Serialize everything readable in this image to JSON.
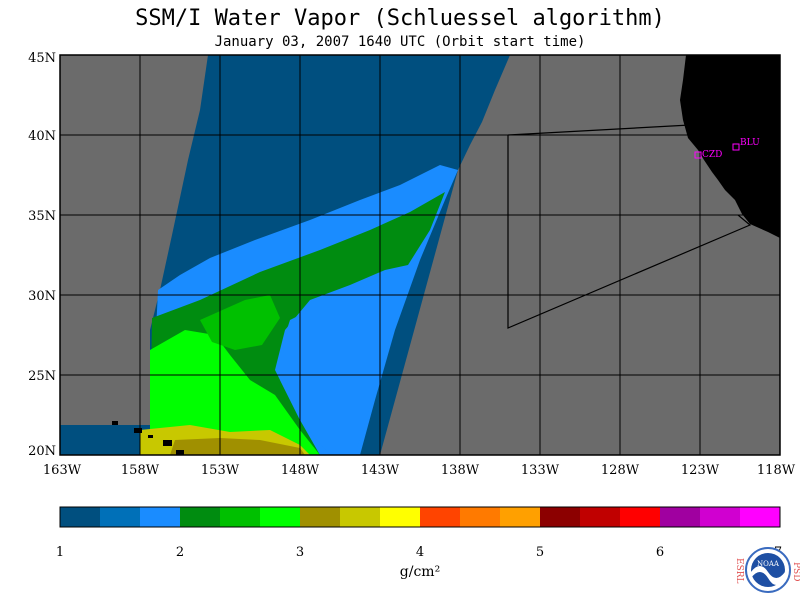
{
  "header": {
    "title": "SSM/I Water Vapor (Schluessel algorithm)",
    "subtitle": "January 03, 2007  1640 UTC  (Orbit start time)"
  },
  "map": {
    "lat_labels": [
      "45N",
      "40N",
      "35N",
      "30N",
      "25N",
      "20N"
    ],
    "lon_labels": [
      "163W",
      "158W",
      "153W",
      "148W",
      "143W",
      "138W",
      "133W",
      "128W",
      "123W",
      "118W"
    ],
    "stations": [
      {
        "label": "CZD"
      },
      {
        "label": "BLU"
      }
    ],
    "colors": {
      "ocean_no_data": "#6b6b6b",
      "land": "#000000",
      "grid": "#000000",
      "station": "#ff00ff"
    }
  },
  "colorbar": {
    "tick_labels": [
      "1",
      "2",
      "3",
      "4",
      "5",
      "6",
      "7"
    ],
    "unit_label": "g/cm²",
    "colors": [
      "#004f7f",
      "#0070b8",
      "#1a8cff",
      "#008c10",
      "#00c000",
      "#00ff00",
      "#a09000",
      "#c8c800",
      "#ffff00",
      "#ff4400",
      "#ff7a00",
      "#ffa000",
      "#8c0000",
      "#c00000",
      "#ff0000",
      "#a000a0",
      "#d000d0",
      "#ff00ff"
    ]
  },
  "logo": {
    "left_text": "ESRL",
    "right_text": "PSD",
    "center_text": "NOAA"
  }
}
